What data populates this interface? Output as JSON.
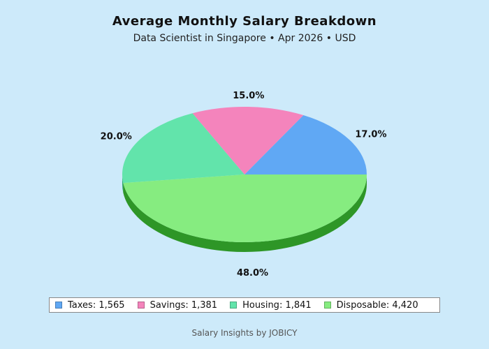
{
  "chart_data": {
    "type": "pie",
    "title": "Average Monthly Salary Breakdown",
    "subtitle": "Data Scientist in Singapore • Apr 2026 • USD",
    "slices": [
      {
        "label": "Taxes",
        "value": 1565,
        "percent_label": "17.0%",
        "legend": "Taxes: 1,565",
        "color": "#60a8f4",
        "side_color": "#2f6fb8"
      },
      {
        "label": "Savings",
        "value": 1381,
        "percent_label": "15.0%",
        "legend": "Savings: 1,381",
        "color": "#f484bc",
        "side_color": "#b84f84"
      },
      {
        "label": "Housing",
        "value": 1841,
        "percent_label": "20.0%",
        "legend": "Housing: 1,841",
        "color": "#62e4ab",
        "side_color": "#2fa872"
      },
      {
        "label": "Disposable",
        "value": 4420,
        "percent_label": "48.0%",
        "legend": "Disposable: 4,420",
        "color": "#86ec80",
        "side_color": "#2e9627"
      }
    ],
    "legend_position": "bottom",
    "start_angle_deg": 0,
    "direction": "counterclockwise",
    "style": "3d"
  },
  "footer": "Salary Insights by JOBICY"
}
